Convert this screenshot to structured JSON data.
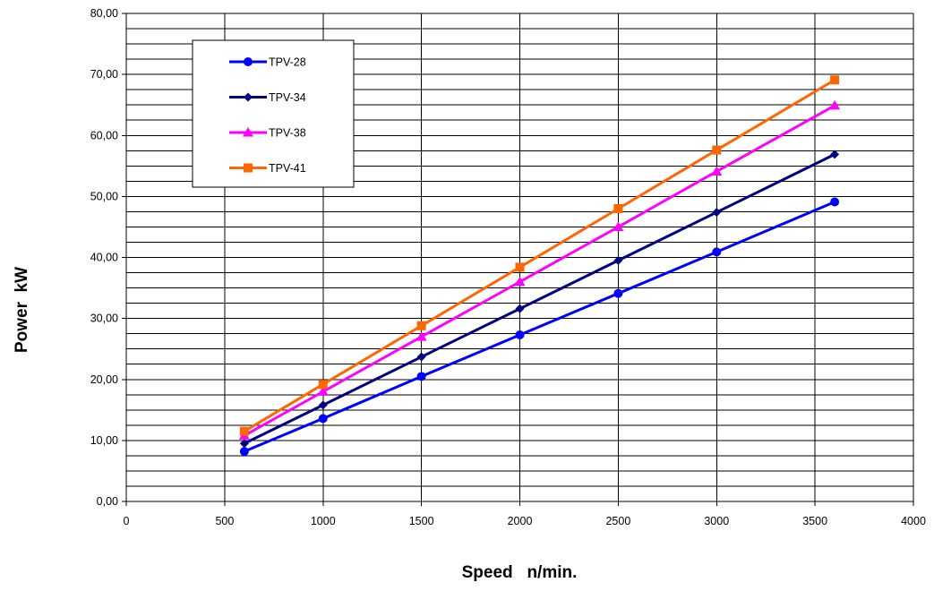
{
  "chart_data": {
    "type": "line",
    "title": "",
    "xlabel": "Speed   n/min.",
    "ylabel": "Power  kW",
    "xlim": [
      0,
      4000
    ],
    "ylim": [
      0,
      80
    ],
    "x_ticks": [
      0,
      500,
      1000,
      1500,
      2000,
      2500,
      3000,
      3500,
      4000
    ],
    "x_tick_labels": [
      "0",
      "500",
      "1000",
      "1500",
      "2000",
      "2500",
      "3000",
      "3500",
      "4000"
    ],
    "y_ticks": [
      0,
      10,
      20,
      30,
      40,
      50,
      60,
      70,
      80
    ],
    "y_tick_labels": [
      "0,00",
      "10,00",
      "20,00",
      "30,00",
      "40,00",
      "50,00",
      "60,00",
      "70,00",
      "80,00"
    ],
    "grid": {
      "x_major": true,
      "y_major": true,
      "y_minor_step": 2.5
    },
    "legend": {
      "placement": "top-left"
    },
    "x": [
      600,
      1000,
      1500,
      2000,
      2500,
      3000,
      3600
    ],
    "series": [
      {
        "name": "TPV-28",
        "color": "#0000ff",
        "marker": "circle",
        "values": [
          8.2,
          13.6,
          20.5,
          27.3,
          34.1,
          40.9,
          49.1
        ]
      },
      {
        "name": "TPV-34",
        "color": "#000080",
        "marker": "diamond",
        "values": [
          9.5,
          15.8,
          23.7,
          31.6,
          39.5,
          47.4,
          56.9
        ]
      },
      {
        "name": "TPV-38",
        "color": "#ff00ff",
        "marker": "triangle",
        "values": [
          10.8,
          18.0,
          27.0,
          36.0,
          45.0,
          54.1,
          64.9
        ]
      },
      {
        "name": "TPV-41",
        "color": "#ff6600",
        "marker": "square",
        "values": [
          11.5,
          19.2,
          28.8,
          38.4,
          48.0,
          57.6,
          69.1
        ]
      }
    ]
  }
}
